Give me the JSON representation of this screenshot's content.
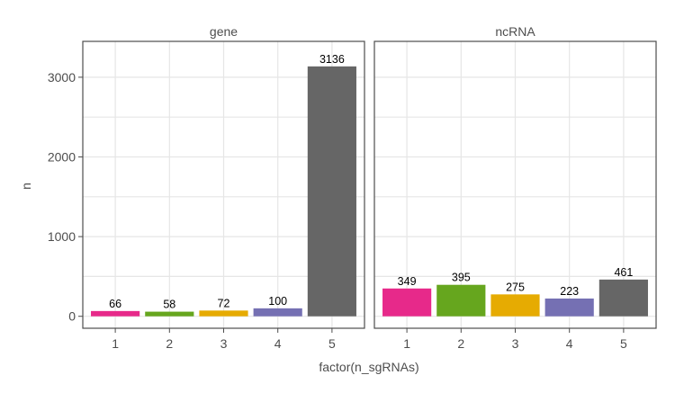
{
  "chart_data": {
    "type": "bar",
    "xlabel": "factor(n_sgRNAs)",
    "ylabel": "n",
    "categories": [
      "1",
      "2",
      "3",
      "4",
      "5"
    ],
    "ylim": [
      -150,
      3450
    ],
    "yticks": [
      0,
      1000,
      2000,
      3000
    ],
    "grid": true,
    "colors": [
      "#e7298a",
      "#66a61e",
      "#e6ab02",
      "#7570b3",
      "#666666"
    ],
    "facets": [
      {
        "label": "gene",
        "values": [
          66,
          58,
          72,
          100,
          3136
        ]
      },
      {
        "label": "ncRNA",
        "values": [
          349,
          395,
          275,
          223,
          461
        ]
      }
    ]
  }
}
